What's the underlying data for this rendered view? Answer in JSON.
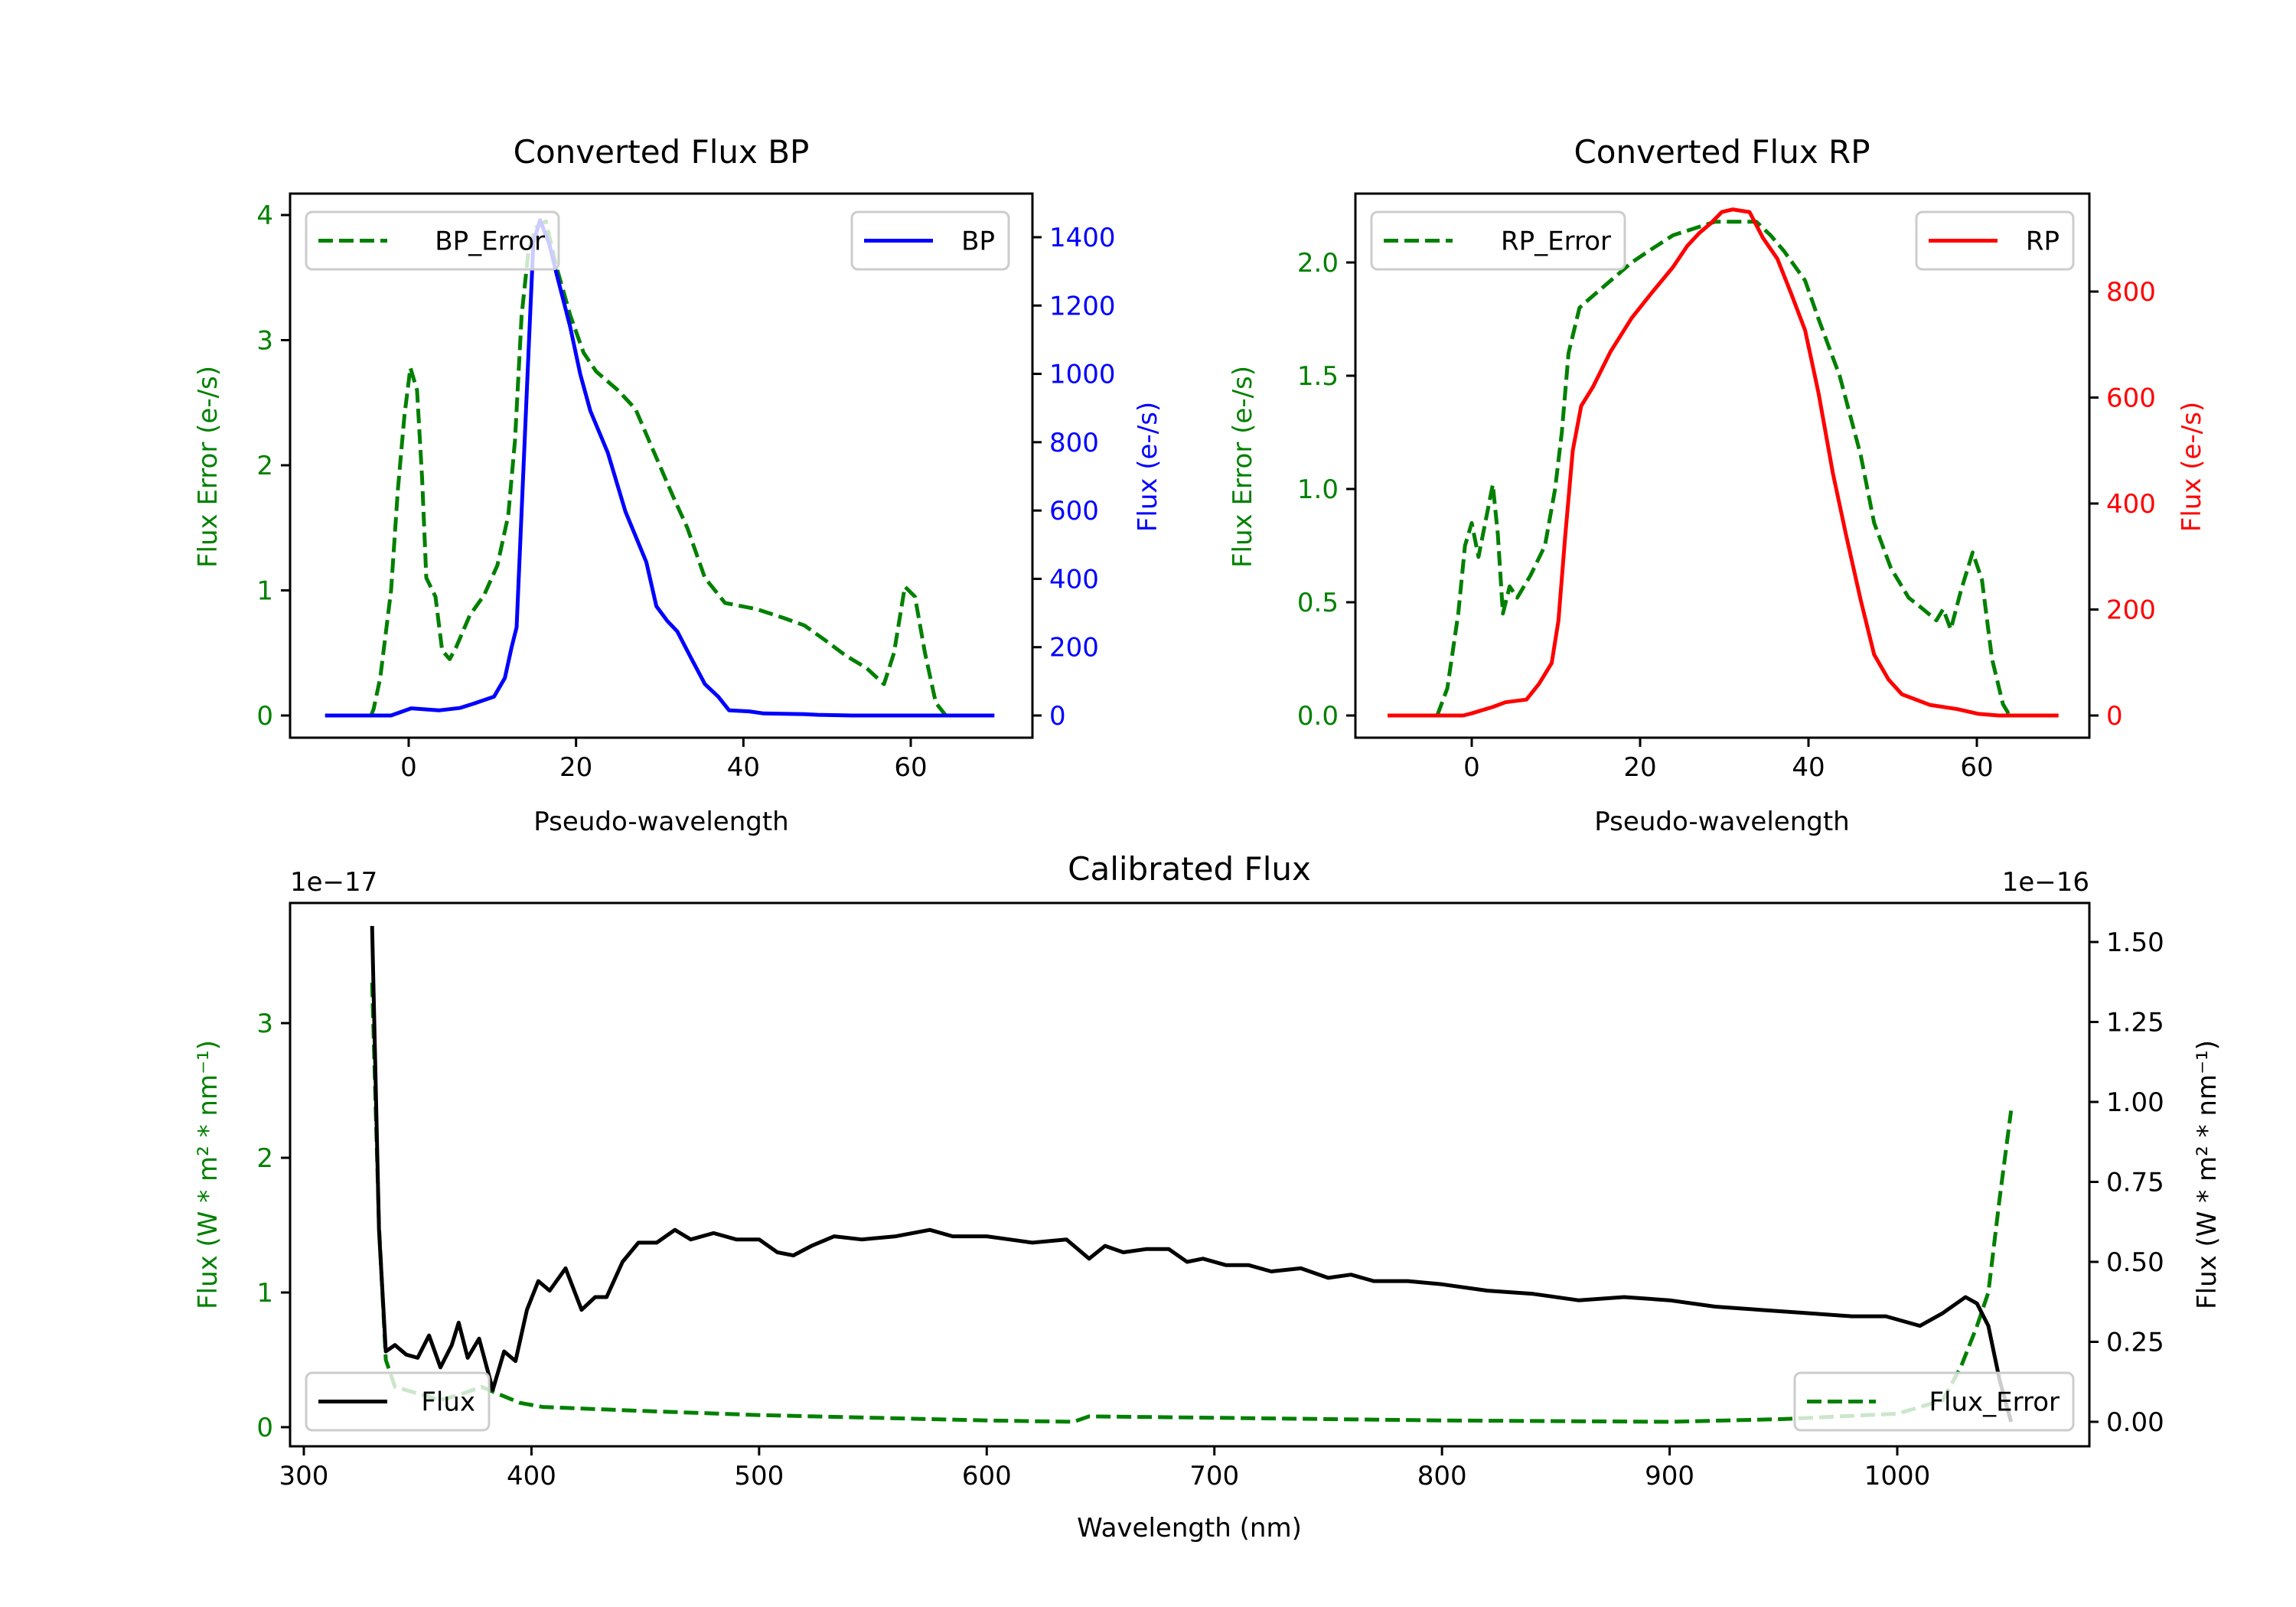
{
  "chart_data": [
    {
      "type": "line",
      "title": "Converted Flux BP",
      "xlabel": "Pseudo-wavelength",
      "ylabel_left": "Flux Error (e-/s)",
      "ylabel_right": "Flux (e-/s)",
      "x_ticks": [
        "0",
        "20",
        "40",
        "60"
      ],
      "x_tick_values": [
        0,
        20,
        40,
        60
      ],
      "yl_ticks": [
        "0",
        "1",
        "2",
        "3",
        "4"
      ],
      "yl_tick_values": [
        0,
        1,
        2,
        3,
        4
      ],
      "yr_ticks": [
        "0",
        "200",
        "400",
        "600",
        "800",
        "1000",
        "1200",
        "1400"
      ],
      "yr_tick_values": [
        0,
        200,
        400,
        600,
        800,
        1000,
        1200,
        1400
      ],
      "left_color": "#008000",
      "right_color": "#0000ff",
      "legend_left": {
        "label": "BP_Error",
        "placement": "upper-left"
      },
      "legend_right": {
        "label": "BP",
        "placement": "upper-right"
      },
      "series": [
        {
          "name": "BP_Error",
          "axis": "left",
          "color": "#008000",
          "style": "dashed",
          "x": [
            -4.5,
            -4.2,
            -3.4,
            -2.1,
            -1.3,
            -0.5,
            0.2,
            1,
            1.6,
            2.1,
            3.2,
            4,
            4.9,
            5.7,
            7.3,
            9,
            10.6,
            11.9,
            12.7,
            13.5,
            14.3,
            15.2,
            16.4,
            17.6,
            19.3,
            20.9,
            22.4,
            25,
            27.1,
            28.7,
            31.6,
            33.3,
            35.4,
            37.8,
            41.6,
            44.8,
            47.3,
            49.8,
            52.2,
            54.7,
            56.8,
            58,
            59.3,
            60.5,
            61.7,
            63,
            64.2
          ],
          "y": [
            0,
            0.05,
            0.3,
            1.0,
            1.8,
            2.4,
            2.78,
            2.6,
            1.9,
            1.1,
            0.95,
            0.52,
            0.45,
            0.55,
            0.8,
            0.96,
            1.2,
            1.6,
            2.2,
            3.2,
            3.7,
            3.9,
            3.95,
            3.6,
            3.2,
            2.9,
            2.75,
            2.6,
            2.45,
            2.2,
            1.75,
            1.5,
            1.1,
            0.9,
            0.85,
            0.78,
            0.72,
            0.6,
            0.48,
            0.38,
            0.25,
            0.5,
            1.03,
            0.95,
            0.5,
            0.1,
            0
          ]
        },
        {
          "name": "BP",
          "axis": "right",
          "color": "#0000ff",
          "style": "solid",
          "x": [
            -10,
            -2.1,
            0.3,
            3.6,
            6.1,
            7.8,
            10.2,
            11.5,
            12.3,
            12.9,
            13.5,
            14.3,
            14.9,
            15.7,
            16.8,
            17.6,
            19.3,
            20.5,
            21.7,
            23.8,
            25.9,
            28.4,
            29.6,
            30.9,
            32.1,
            33.8,
            35.4,
            37,
            38.3,
            40.7,
            42.4,
            47.3,
            48.9,
            53,
            60,
            70
          ],
          "y": [
            0,
            0,
            21,
            15,
            22,
            35,
            55,
            110,
            200,
            258,
            600,
            1050,
            1384,
            1450,
            1380,
            1300,
            1138,
            1000,
            892,
            769,
            597,
            449,
            320,
            277,
            246,
            166,
            92,
            55,
            15,
            12,
            6,
            4,
            2,
            0,
            0,
            0
          ]
        }
      ]
    },
    {
      "type": "line",
      "title": "Converted Flux RP",
      "xlabel": "Pseudo-wavelength",
      "ylabel_left": "Flux Error (e-/s)",
      "ylabel_right": "Flux (e-/s)",
      "x_ticks": [
        "0",
        "20",
        "40",
        "60"
      ],
      "x_tick_values": [
        0,
        20,
        40,
        60
      ],
      "yl_ticks": [
        "0.0",
        "0.5",
        "1.0",
        "1.5",
        "2.0"
      ],
      "yl_tick_values": [
        0,
        0.5,
        1,
        1.5,
        2
      ],
      "yr_ticks": [
        "0",
        "200",
        "400",
        "600",
        "800"
      ],
      "yr_tick_values": [
        0,
        200,
        400,
        600,
        800
      ],
      "left_color": "#008000",
      "right_color": "#ff0000",
      "legend_left": {
        "label": "RP_Error",
        "placement": "upper-left"
      },
      "legend_right": {
        "label": "RP",
        "placement": "upper-right"
      },
      "series": [
        {
          "name": "RP_Error",
          "axis": "left",
          "color": "#008000",
          "style": "dashed",
          "x": [
            -4.1,
            -2.9,
            -1.6,
            -0.8,
            0,
            0.8,
            1.6,
            2.5,
            3.1,
            3.7,
            4.5,
            5.4,
            7,
            8.7,
            9.9,
            10.7,
            11.5,
            12.8,
            14,
            16.5,
            19,
            21,
            23.9,
            26.4,
            28.9,
            33.8,
            35.5,
            37.1,
            39.6,
            41.2,
            43.7,
            46.2,
            47.8,
            49.8,
            51.9,
            53.6,
            55.2,
            56,
            56.9,
            58.1,
            59.5,
            60.6,
            61.8,
            63.1,
            63.9
          ],
          "y": [
            0,
            0.12,
            0.45,
            0.75,
            0.85,
            0.7,
            0.85,
            1.02,
            0.8,
            0.45,
            0.57,
            0.52,
            0.62,
            0.75,
            1.0,
            1.25,
            1.6,
            1.8,
            1.84,
            1.92,
            2.0,
            2.05,
            2.12,
            2.15,
            2.18,
            2.18,
            2.12,
            2.05,
            1.92,
            1.75,
            1.5,
            1.15,
            0.85,
            0.65,
            0.52,
            0.47,
            0.42,
            0.47,
            0.38,
            0.55,
            0.72,
            0.6,
            0.25,
            0.05,
            0
          ]
        },
        {
          "name": "RP",
          "axis": "right",
          "color": "#ff0000",
          "style": "solid",
          "x": [
            -10,
            -1,
            0,
            2.5,
            4,
            6.5,
            8,
            9.5,
            10.3,
            11.1,
            12,
            13,
            14.4,
            16.5,
            19,
            21.4,
            23.9,
            25.6,
            27,
            28.4,
            29.7,
            31,
            33,
            34.6,
            36.3,
            37.9,
            39.6,
            41.2,
            42.9,
            44.5,
            46.2,
            47.8,
            49.5,
            51.1,
            54.4,
            57.7,
            60.2,
            62.6,
            69.7
          ],
          "y": [
            0,
            0,
            4,
            16,
            25,
            30,
            60,
            99,
            179,
            338,
            500,
            584,
            620,
            687,
            750,
            798,
            846,
            886,
            910,
            929,
            950,
            955,
            950,
            901,
            862,
            798,
            727,
            608,
            457,
            338,
            218,
            115,
            68,
            40,
            20,
            12,
            3,
            0,
            0
          ]
        }
      ]
    },
    {
      "type": "line",
      "title": "Calibrated Flux",
      "xlabel": "Wavelength (nm)",
      "ylabel_left": "Flux (W * m² * nm⁻¹)",
      "ylabel_right": "Flux (W * m² * nm⁻¹)",
      "offset_left": "1e−17",
      "offset_right": "1e−16",
      "x_ticks": [
        "300",
        "400",
        "500",
        "600",
        "700",
        "800",
        "900",
        "1000"
      ],
      "x_tick_values": [
        300,
        400,
        500,
        600,
        700,
        800,
        900,
        1000
      ],
      "yl_ticks": [
        "0",
        "1",
        "2",
        "3"
      ],
      "yl_tick_values": [
        0,
        1,
        2,
        3
      ],
      "yr_ticks": [
        "0.00",
        "0.25",
        "0.50",
        "0.75",
        "1.00",
        "1.25",
        "1.50"
      ],
      "yr_tick_values": [
        0,
        0.25,
        0.5,
        0.75,
        1,
        1.25,
        1.5
      ],
      "left_color": "#008000",
      "right_color": "#000000",
      "legend_left": {
        "label": "Flux",
        "placement": "lower-left"
      },
      "legend_right": {
        "label": "Flux_Error",
        "placement": "lower-right"
      },
      "series": [
        {
          "name": "Flux_Error",
          "axis": "left",
          "color": "#008000",
          "style": "dashed",
          "x": [
            330,
            333,
            336,
            340,
            350,
            360,
            370,
            378,
            385,
            395,
            405,
            420,
            450,
            500,
            550,
            600,
            638,
            645,
            700,
            800,
            900,
            950,
            1000,
            1020,
            1028,
            1035,
            1040,
            1045,
            1050
          ],
          "y": [
            3.3,
            1.5,
            0.5,
            0.3,
            0.25,
            0.2,
            0.25,
            0.3,
            0.25,
            0.18,
            0.15,
            0.14,
            0.12,
            0.09,
            0.07,
            0.05,
            0.04,
            0.08,
            0.07,
            0.05,
            0.04,
            0.06,
            0.1,
            0.2,
            0.45,
            0.75,
            1.0,
            1.7,
            2.35
          ]
        },
        {
          "name": "Flux",
          "axis": "right",
          "color": "#000000",
          "style": "solid",
          "x": [
            330,
            333,
            336,
            340,
            345,
            350,
            355,
            360,
            365,
            368,
            372,
            377,
            383,
            388,
            393,
            398,
            403,
            408,
            415,
            422,
            428,
            433,
            440,
            447,
            455,
            463,
            470,
            480,
            490,
            500,
            508,
            515,
            523,
            533,
            545,
            560,
            575,
            585,
            600,
            610,
            620,
            635,
            645,
            652,
            660,
            670,
            680,
            688,
            695,
            705,
            715,
            725,
            738,
            750,
            760,
            770,
            785,
            800,
            820,
            840,
            860,
            880,
            900,
            920,
            940,
            960,
            980,
            995,
            1010,
            1020,
            1030,
            1035,
            1040,
            1045,
            1050
          ],
          "y": [
            1.55,
            0.6,
            0.22,
            0.24,
            0.21,
            0.2,
            0.27,
            0.17,
            0.24,
            0.31,
            0.2,
            0.26,
            0.1,
            0.22,
            0.19,
            0.35,
            0.44,
            0.41,
            0.48,
            0.35,
            0.39,
            0.39,
            0.5,
            0.56,
            0.56,
            0.6,
            0.57,
            0.59,
            0.57,
            0.57,
            0.53,
            0.52,
            0.55,
            0.58,
            0.57,
            0.58,
            0.6,
            0.58,
            0.58,
            0.57,
            0.56,
            0.57,
            0.51,
            0.55,
            0.53,
            0.54,
            0.54,
            0.5,
            0.51,
            0.49,
            0.49,
            0.47,
            0.48,
            0.45,
            0.46,
            0.44,
            0.44,
            0.43,
            0.41,
            0.4,
            0.38,
            0.39,
            0.38,
            0.36,
            0.35,
            0.34,
            0.33,
            0.33,
            0.3,
            0.34,
            0.39,
            0.37,
            0.3,
            0.13,
            0.0
          ]
        }
      ]
    }
  ]
}
